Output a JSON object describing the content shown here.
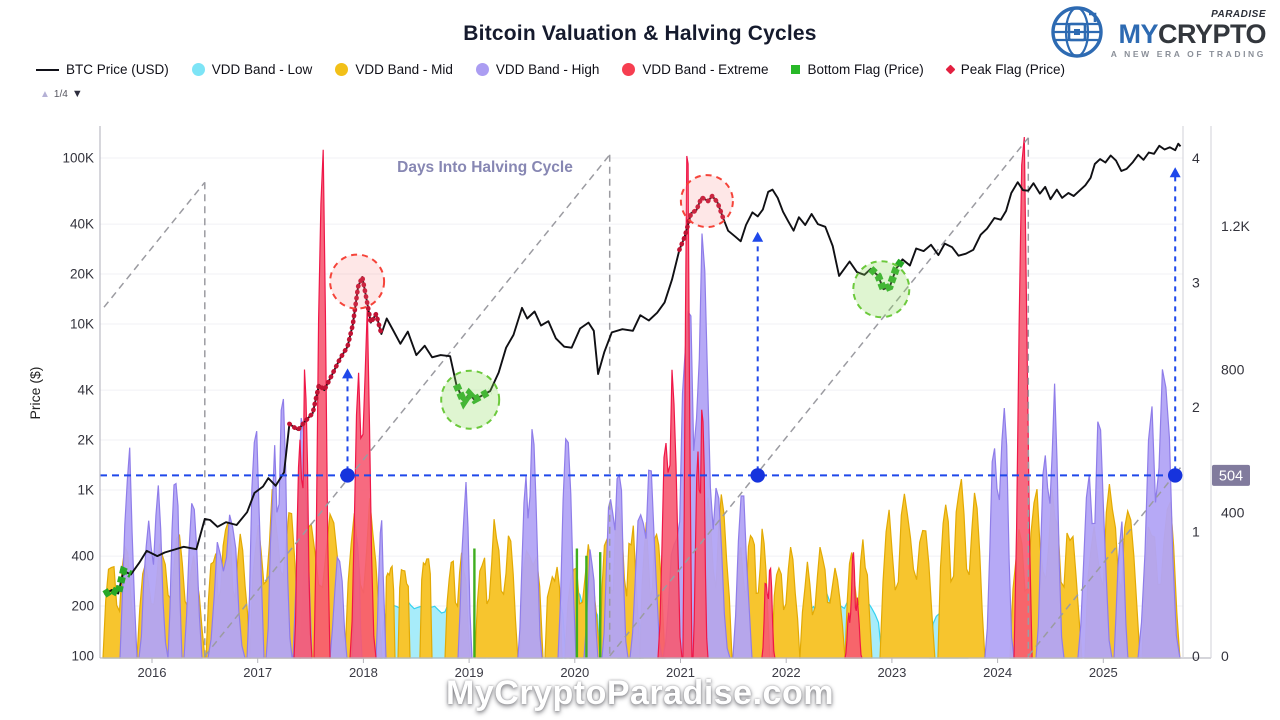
{
  "header": {
    "title": "Bitcoin Valuation & Halving Cycles",
    "logo": {
      "brand_top": "PARADISE",
      "brand_main_1": "MY",
      "brand_main_2": "CRYPTO",
      "tagline": "A NEW ERA OF TRADING"
    },
    "pager": {
      "up": "▲",
      "label": "1/4",
      "down": "▼"
    }
  },
  "legend": [
    {
      "label": "BTC Price (USD)",
      "swatch": "line",
      "color": "#111118"
    },
    {
      "label": "VDD Band - Low",
      "swatch": "dot",
      "color": "#7de4f6"
    },
    {
      "label": "VDD Band - Mid",
      "swatch": "dot",
      "color": "#f2c018"
    },
    {
      "label": "VDD Band - High",
      "swatch": "dot",
      "color": "#ab9df2"
    },
    {
      "label": "VDD Band - Extreme",
      "swatch": "dot",
      "color": "#f63e50"
    },
    {
      "label": "Bottom Flag (Price)",
      "swatch": "square",
      "color": "#28b828"
    },
    {
      "label": "Peak Flag (Price)",
      "swatch": "diamond",
      "color": "#e32040"
    }
  ],
  "watermark": "MyCryptoParadise.com",
  "colors": {
    "price_line": "#101014",
    "band_low_fill": "#a7ecfa",
    "band_low_stroke": "#35d2ef",
    "band_mid_fill": "#f7c52e",
    "band_mid_stroke": "#e2aa05",
    "band_high_fill": "#b2a4f5",
    "band_high_stroke": "#8f7de9",
    "band_extreme_fill": "#f65a72",
    "band_extreme_stroke": "#ef1748",
    "bottom_flag": "#27a827",
    "peak_flag": "#c11334",
    "guide_gray": "#9b9ba1",
    "guide_blue": "#1f48ea",
    "dot_blue": "#1633dd",
    "annotation_green": "#6cc93c",
    "annotation_green_fill": "rgba(140,220,90,0.28)",
    "annotation_red": "#f5443a",
    "annotation_red_fill": "rgba(250,120,120,0.18)",
    "badge_bg": "#817b9d",
    "badge_text": "#ffffff",
    "halving_label_color": "#8787b3",
    "axis_text": "#33333c",
    "grid": "#f1f1f5",
    "spine": "#bcbcc4",
    "spine_light": "#d8d8de"
  },
  "chart_data": {
    "type": "line+area",
    "title": "Bitcoin Valuation & Halving Cycles",
    "inner_label": "Days Into Halving Cycle",
    "ylabel_left": "Price ($)",
    "x_ticks": [
      "2016",
      "2017",
      "2018",
      "2019",
      "2020",
      "2021",
      "2022",
      "2023",
      "2024",
      "2025"
    ],
    "x_tick_years": [
      2016,
      2017,
      2018,
      2019,
      2020,
      2021,
      2022,
      2023,
      2024,
      2025
    ],
    "y_ticks_left": [
      [
        "100K",
        100000
      ],
      [
        "40K",
        40000
      ],
      [
        "20K",
        20000
      ],
      [
        "10K",
        10000
      ],
      [
        "4K",
        4000
      ],
      [
        "2K",
        2000
      ],
      [
        "1K",
        1000
      ],
      [
        "400",
        400
      ],
      [
        "200",
        200
      ],
      [
        "100",
        100
      ]
    ],
    "y_ticks_right_days": [
      [
        "1.2K",
        1200
      ],
      [
        "800",
        800
      ],
      [
        "400",
        400
      ],
      [
        "0",
        0
      ]
    ],
    "y_ticks_right_years": [
      [
        "4",
        4
      ],
      [
        "3",
        3
      ],
      [
        "2",
        2
      ],
      [
        "1",
        1
      ],
      [
        "0",
        0
      ]
    ],
    "current_days_badge": "504",
    "current_days_value": 504,
    "x_range_years": [
      2015.546,
      2025.73
    ],
    "price_axis_range": [
      100,
      126000
    ],
    "halvings": [
      2012.88,
      2016.5,
      2020.33,
      2024.29
    ],
    "blue_dot_years": [
      2017.85,
      2021.73,
      2025.68
    ],
    "arrows": [
      {
        "year": 2017.85,
        "to_price": 5400
      },
      {
        "year": 2021.73,
        "to_price": 36000
      },
      {
        "year": 2025.68,
        "to_price": 88000
      }
    ],
    "annotation_circles": [
      {
        "kind": "peak",
        "year": 2017.94,
        "price": 18000,
        "r": 27
      },
      {
        "kind": "peak",
        "year": 2021.25,
        "price": 55000,
        "r": 26
      },
      {
        "kind": "bottom",
        "year": 2019.01,
        "price": 3500,
        "r": 29
      },
      {
        "kind": "bottom",
        "year": 2022.9,
        "price": 16200,
        "r": 28
      }
    ],
    "peak_flag_ranges": [
      [
        2017.3,
        2018.17
      ],
      [
        2020.96,
        2021.44
      ]
    ],
    "bottom_flag_ranges": [
      [
        2015.546,
        2015.86
      ],
      [
        2018.88,
        2019.25
      ],
      [
        2022.78,
        2023.1
      ]
    ],
    "flag_stripes": [
      [
        2019.05,
        300
      ],
      [
        2020.02,
        300
      ],
      [
        2020.11,
        280
      ],
      [
        2020.24,
        290
      ]
    ],
    "price_series": [
      [
        2015.55,
        235
      ],
      [
        2015.62,
        250
      ],
      [
        2015.68,
        238
      ],
      [
        2015.73,
        325
      ],
      [
        2015.8,
        310
      ],
      [
        2015.88,
        365
      ],
      [
        2015.95,
        430
      ],
      [
        2016.05,
        400
      ],
      [
        2016.12,
        420
      ],
      [
        2016.2,
        435
      ],
      [
        2016.3,
        455
      ],
      [
        2016.42,
        440
      ],
      [
        2016.5,
        670
      ],
      [
        2016.55,
        660
      ],
      [
        2016.62,
        600
      ],
      [
        2016.7,
        640
      ],
      [
        2016.8,
        615
      ],
      [
        2016.9,
        735
      ],
      [
        2016.97,
        960
      ],
      [
        2017.05,
        1050
      ],
      [
        2017.1,
        1180
      ],
      [
        2017.17,
        1060
      ],
      [
        2017.25,
        1280
      ],
      [
        2017.3,
        2500
      ],
      [
        2017.38,
        2300
      ],
      [
        2017.45,
        2600
      ],
      [
        2017.52,
        2900
      ],
      [
        2017.58,
        4300
      ],
      [
        2017.63,
        4000
      ],
      [
        2017.7,
        4900
      ],
      [
        2017.78,
        6200
      ],
      [
        2017.85,
        7300
      ],
      [
        2017.9,
        9900
      ],
      [
        2017.95,
        16800
      ],
      [
        2017.99,
        19200
      ],
      [
        2018.03,
        14000
      ],
      [
        2018.07,
        10200
      ],
      [
        2018.12,
        11500
      ],
      [
        2018.17,
        8700
      ],
      [
        2018.22,
        10800
      ],
      [
        2018.28,
        9200
      ],
      [
        2018.35,
        7600
      ],
      [
        2018.42,
        9000
      ],
      [
        2018.5,
        6500
      ],
      [
        2018.58,
        7400
      ],
      [
        2018.65,
        6300
      ],
      [
        2018.73,
        6500
      ],
      [
        2018.82,
        6400
      ],
      [
        2018.88,
        4300
      ],
      [
        2018.95,
        3400
      ],
      [
        2019.0,
        3800
      ],
      [
        2019.05,
        3500
      ],
      [
        2019.12,
        3700
      ],
      [
        2019.2,
        3950
      ],
      [
        2019.28,
        5100
      ],
      [
        2019.35,
        7200
      ],
      [
        2019.42,
        8600
      ],
      [
        2019.5,
        12500
      ],
      [
        2019.55,
        10800
      ],
      [
        2019.62,
        11900
      ],
      [
        2019.68,
        9800
      ],
      [
        2019.75,
        10400
      ],
      [
        2019.82,
        8200
      ],
      [
        2019.9,
        7300
      ],
      [
        2019.97,
        7200
      ],
      [
        2020.05,
        9400
      ],
      [
        2020.13,
        10200
      ],
      [
        2020.18,
        9100
      ],
      [
        2020.22,
        5000
      ],
      [
        2020.28,
        6800
      ],
      [
        2020.35,
        8900
      ],
      [
        2020.45,
        9300
      ],
      [
        2020.55,
        9100
      ],
      [
        2020.62,
        11300
      ],
      [
        2020.7,
        10500
      ],
      [
        2020.78,
        11700
      ],
      [
        2020.85,
        13500
      ],
      [
        2020.92,
        18500
      ],
      [
        2020.99,
        28000
      ],
      [
        2021.04,
        33500
      ],
      [
        2021.1,
        46500
      ],
      [
        2021.15,
        48500
      ],
      [
        2021.2,
        58000
      ],
      [
        2021.26,
        55000
      ],
      [
        2021.3,
        59000
      ],
      [
        2021.35,
        54000
      ],
      [
        2021.4,
        44000
      ],
      [
        2021.45,
        36500
      ],
      [
        2021.52,
        33500
      ],
      [
        2021.57,
        31500
      ],
      [
        2021.62,
        39500
      ],
      [
        2021.68,
        47000
      ],
      [
        2021.73,
        44500
      ],
      [
        2021.78,
        49000
      ],
      [
        2021.83,
        62500
      ],
      [
        2021.87,
        64500
      ],
      [
        2021.92,
        57500
      ],
      [
        2021.97,
        47500
      ],
      [
        2022.02,
        41500
      ],
      [
        2022.07,
        36500
      ],
      [
        2022.12,
        44000
      ],
      [
        2022.18,
        39500
      ],
      [
        2022.24,
        46000
      ],
      [
        2022.3,
        40000
      ],
      [
        2022.37,
        38500
      ],
      [
        2022.44,
        29500
      ],
      [
        2022.5,
        19500
      ],
      [
        2022.55,
        21500
      ],
      [
        2022.6,
        23800
      ],
      [
        2022.67,
        20500
      ],
      [
        2022.74,
        19800
      ],
      [
        2022.8,
        21500
      ],
      [
        2022.87,
        19500
      ],
      [
        2022.92,
        16200
      ],
      [
        2022.98,
        16800
      ],
      [
        2023.04,
        21500
      ],
      [
        2023.1,
        24500
      ],
      [
        2023.17,
        22500
      ],
      [
        2023.23,
        28500
      ],
      [
        2023.3,
        27500
      ],
      [
        2023.37,
        30000
      ],
      [
        2023.44,
        26000
      ],
      [
        2023.5,
        30500
      ],
      [
        2023.57,
        29000
      ],
      [
        2023.63,
        25800
      ],
      [
        2023.7,
        26500
      ],
      [
        2023.77,
        28000
      ],
      [
        2023.84,
        34500
      ],
      [
        2023.9,
        37500
      ],
      [
        2023.97,
        43500
      ],
      [
        2024.03,
        42500
      ],
      [
        2024.08,
        48000
      ],
      [
        2024.13,
        61500
      ],
      [
        2024.19,
        71500
      ],
      [
        2024.24,
        64000
      ],
      [
        2024.29,
        63500
      ],
      [
        2024.34,
        70500
      ],
      [
        2024.4,
        61000
      ],
      [
        2024.45,
        67000
      ],
      [
        2024.5,
        56500
      ],
      [
        2024.56,
        64500
      ],
      [
        2024.61,
        57500
      ],
      [
        2024.67,
        61500
      ],
      [
        2024.72,
        59000
      ],
      [
        2024.78,
        64000
      ],
      [
        2024.83,
        68500
      ],
      [
        2024.88,
        76000
      ],
      [
        2024.92,
        92000
      ],
      [
        2024.97,
        98500
      ],
      [
        2025.02,
        94000
      ],
      [
        2025.07,
        103500
      ],
      [
        2025.12,
        96500
      ],
      [
        2025.17,
        83500
      ],
      [
        2025.22,
        86000
      ],
      [
        2025.28,
        94500
      ],
      [
        2025.33,
        104500
      ],
      [
        2025.38,
        97500
      ],
      [
        2025.43,
        108000
      ],
      [
        2025.48,
        106000
      ],
      [
        2025.53,
        118500
      ],
      [
        2025.58,
        112500
      ],
      [
        2025.63,
        116000
      ],
      [
        2025.68,
        111500
      ],
      [
        2025.71,
        122000
      ],
      [
        2025.73,
        117500
      ]
    ],
    "vdd_spikes": [
      [
        "low",
        2015.546,
        2015.697,
        73,
        1
      ],
      [
        "low",
        2018.157,
        2018.933,
        162,
        4
      ],
      [
        "low",
        2019.084,
        2019.16,
        87,
        1
      ],
      [
        "low",
        2019.179,
        2019.443,
        134,
        2
      ],
      [
        "low",
        2019.718,
        2019.916,
        156,
        1
      ],
      [
        "low",
        2019.954,
        2020.238,
        179,
        2
      ],
      [
        "low",
        2020.408,
        2020.645,
        123,
        2
      ],
      [
        "low",
        2022.13,
        2022.906,
        162,
        4
      ],
      [
        "low",
        2023.36,
        2023.719,
        151,
        2
      ],
      [
        "low",
        2024.609,
        2024.76,
        50,
        1
      ],
      [
        "mid",
        2015.536,
        2015.849,
        301,
        2
      ],
      [
        "mid",
        2015.858,
        2016.501,
        329,
        4
      ],
      [
        "mid",
        2016.511,
        2016.927,
        380,
        3
      ],
      [
        "mid",
        2016.927,
        2017.4,
        449,
        3
      ],
      [
        "mid",
        2017.4,
        2017.826,
        421,
        2
      ],
      [
        "mid",
        2017.826,
        2018.176,
        435,
        2
      ],
      [
        "mid",
        2018.204,
        2018.299,
        254,
        1
      ],
      [
        "mid",
        2018.327,
        2018.441,
        234,
        1
      ],
      [
        "mid",
        2018.535,
        2018.649,
        268,
        1
      ],
      [
        "mid",
        2018.772,
        2019.008,
        310,
        2
      ],
      [
        "mid",
        2019.056,
        2019.462,
        366,
        3
      ],
      [
        "mid",
        2019.481,
        2019.699,
        282,
        1
      ],
      [
        "mid",
        2019.718,
        2019.879,
        240,
        1
      ],
      [
        "mid",
        2019.907,
        2020.238,
        310,
        2
      ],
      [
        "mid",
        2020.238,
        2020.617,
        421,
        3
      ],
      [
        "mid",
        2020.617,
        2020.853,
        380,
        2
      ],
      [
        "mid",
        2021.184,
        2021.487,
        463,
        2
      ],
      [
        "mid",
        2021.515,
        2021.846,
        380,
        3
      ],
      [
        "mid",
        2021.865,
        2022.13,
        310,
        2
      ],
      [
        "mid",
        2022.13,
        2022.556,
        296,
        3
      ],
      [
        "mid",
        2022.556,
        2022.811,
        324,
        2
      ],
      [
        "mid",
        2022.887,
        2023.407,
        463,
        3
      ],
      [
        "mid",
        2023.435,
        2023.88,
        477,
        3
      ],
      [
        "mid",
        2024.117,
        2024.798,
        449,
        4
      ],
      [
        "mid",
        2024.826,
        2025.347,
        463,
        3
      ],
      [
        "mid",
        2025.366,
        2025.725,
        435,
        2
      ],
      [
        "high",
        2015.697,
        2015.858,
        569,
        1
      ],
      [
        "high",
        2015.877,
        2016.151,
        581,
        2
      ],
      [
        "high",
        2016.151,
        2016.284,
        547,
        1
      ],
      [
        "high",
        2016.303,
        2016.473,
        413,
        1
      ],
      [
        "high",
        2016.53,
        2016.88,
        497,
        2
      ],
      [
        "high",
        2016.899,
        2017.06,
        636,
        1
      ],
      [
        "high",
        2017.079,
        2017.325,
        849,
        2
      ],
      [
        "high",
        2017.334,
        2017.514,
        659,
        1
      ],
      [
        "high",
        2017.684,
        2017.845,
        282,
        1
      ],
      [
        "high",
        2017.892,
        2017.987,
        324,
        1
      ],
      [
        "high",
        2018.119,
        2018.214,
        374,
        1
      ],
      [
        "high",
        2018.895,
        2019.027,
        469,
        1
      ],
      [
        "high",
        2019.462,
        2019.69,
        849,
        2
      ],
      [
        "high",
        2019.841,
        2020.011,
        664,
        1
      ],
      [
        "high",
        2020.087,
        2020.219,
        282,
        1
      ],
      [
        "high",
        2020.257,
        2020.503,
        748,
        2
      ],
      [
        "high",
        2020.522,
        2020.825,
        673,
        2
      ],
      [
        "high",
        2020.834,
        2021.468,
        1195,
        4
      ],
      [
        "high",
        2021.496,
        2021.676,
        430,
        1
      ],
      [
        "high",
        2023.88,
        2024.155,
        904,
        2
      ],
      [
        "high",
        2024.363,
        2024.628,
        876,
        2
      ],
      [
        "high",
        2024.76,
        2025.082,
        793,
        2
      ],
      [
        "high",
        2025.101,
        2025.233,
        380,
        1
      ],
      [
        "high",
        2025.328,
        2025.725,
        971,
        2
      ],
      [
        "extreme",
        2017.343,
        2017.514,
        971,
        2
      ],
      [
        "extreme",
        2017.533,
        2017.684,
        1418,
        1
      ],
      [
        "extreme",
        2017.873,
        2018.119,
        1167,
        2
      ],
      [
        "extreme",
        2020.787,
        2021.014,
        1055,
        2
      ],
      [
        "extreme",
        2021.023,
        2021.108,
        1379,
        1
      ],
      [
        "extreme",
        2021.118,
        2021.26,
        980,
        2
      ],
      [
        "extreme",
        2021.77,
        2021.893,
        346,
        2
      ],
      [
        "extreme",
        2022.556,
        2022.717,
        290,
        3
      ],
      [
        "extreme",
        2024.155,
        2024.326,
        1432,
        1
      ]
    ]
  }
}
